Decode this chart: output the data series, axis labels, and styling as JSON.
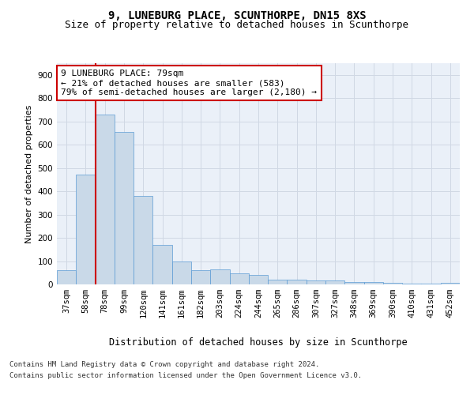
{
  "title": "9, LUNEBURG PLACE, SCUNTHORPE, DN15 8XS",
  "subtitle": "Size of property relative to detached houses in Scunthorpe",
  "xlabel": "Distribution of detached houses by size in Scunthorpe",
  "ylabel": "Number of detached properties",
  "categories": [
    "37sqm",
    "58sqm",
    "78sqm",
    "99sqm",
    "120sqm",
    "141sqm",
    "161sqm",
    "182sqm",
    "203sqm",
    "224sqm",
    "244sqm",
    "265sqm",
    "286sqm",
    "307sqm",
    "327sqm",
    "348sqm",
    "369sqm",
    "390sqm",
    "410sqm",
    "431sqm",
    "452sqm"
  ],
  "values": [
    62,
    470,
    730,
    655,
    380,
    170,
    100,
    60,
    65,
    47,
    40,
    20,
    20,
    18,
    18,
    10,
    10,
    8,
    5,
    5,
    8
  ],
  "bar_color": "#c9d9e8",
  "bar_edge_color": "#5b9bd5",
  "grid_color": "#d0d8e4",
  "background_color": "#eaf0f8",
  "annotation_text": "9 LUNEBURG PLACE: 79sqm\n← 21% of detached houses are smaller (583)\n79% of semi-detached houses are larger (2,180) →",
  "annotation_box_color": "#ffffff",
  "annotation_box_edge": "#cc0000",
  "redline_bin": 2,
  "ylim": [
    0,
    950
  ],
  "yticks": [
    0,
    100,
    200,
    300,
    400,
    500,
    600,
    700,
    800,
    900
  ],
  "footer_line1": "Contains HM Land Registry data © Crown copyright and database right 2024.",
  "footer_line2": "Contains public sector information licensed under the Open Government Licence v3.0.",
  "title_fontsize": 10,
  "subtitle_fontsize": 9,
  "xlabel_fontsize": 8.5,
  "ylabel_fontsize": 8,
  "tick_fontsize": 7.5,
  "annotation_fontsize": 8,
  "footer_fontsize": 6.5
}
